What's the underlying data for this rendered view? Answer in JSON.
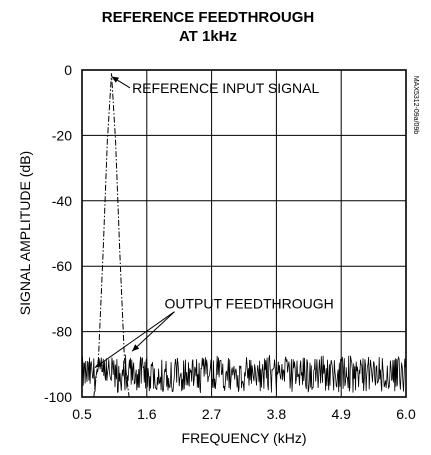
{
  "chart_data": {
    "type": "line",
    "title": "REFERENCE FEEDTHROUGH",
    "subtitle": "AT 1kHz",
    "xlabel": "FREQUENCY (kHz)",
    "ylabel": "SIGNAL AMPLITUDE (dB)",
    "xlim": [
      0.5,
      6.0
    ],
    "ylim": [
      -100,
      0
    ],
    "x_ticks": [
      "0.5",
      "1.6",
      "2.7",
      "3.8",
      "4.9",
      "6.0"
    ],
    "y_ticks": [
      "0",
      "-20",
      "-40",
      "-60",
      "-80",
      "-100"
    ],
    "grid": true,
    "figure_id": "MAX5312-09a/09b",
    "annotations": [
      {
        "text": "REFERENCE INPUT SIGNAL",
        "x": 1.35,
        "y": -7,
        "arrow_to": {
          "x": 1.0,
          "y": -2
        }
      },
      {
        "text": "OUTPUT FEEDTHROUGH",
        "x": 1.9,
        "y": -73,
        "arrow_to": [
          {
            "x": 0.72,
            "y": -91
          },
          {
            "x": 1.35,
            "y": -86
          }
        ]
      }
    ],
    "series": [
      {
        "style": "dash-dot",
        "points": [
          [
            0.5,
            -100
          ],
          [
            0.7,
            -100
          ],
          [
            0.78,
            -88
          ],
          [
            0.86,
            -55
          ],
          [
            0.93,
            -22
          ],
          [
            1.0,
            -1
          ],
          [
            1.07,
            -22
          ],
          [
            1.14,
            -55
          ],
          [
            1.22,
            -88
          ],
          [
            1.3,
            -100
          ],
          [
            6.0,
            -100
          ]
        ]
      },
      {
        "style": "solid-noise",
        "noise_floor": -93,
        "noise_range": [
          -99,
          -87
        ],
        "x_range": [
          0.5,
          6.0
        ]
      }
    ]
  }
}
